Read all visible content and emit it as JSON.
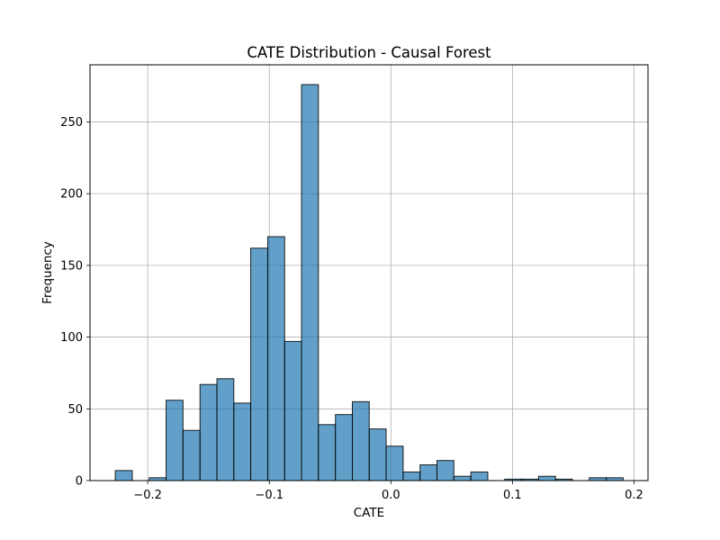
{
  "chart_data": {
    "type": "bar",
    "subtype": "histogram",
    "title": "CATE Distribution - Causal Forest",
    "xlabel": "CATE",
    "ylabel": "Frequency",
    "xlim": [
      -0.2475,
      0.2115
    ],
    "ylim": [
      0,
      289.8
    ],
    "x_ticks": [
      -0.2,
      -0.1,
      0.0,
      0.1,
      0.2
    ],
    "x_tick_labels": [
      "−0.2",
      "−0.1",
      "0.0",
      "0.1",
      "0.2"
    ],
    "y_ticks": [
      0,
      50,
      100,
      150,
      200,
      250
    ],
    "y_tick_labels": [
      "0",
      "50",
      "100",
      "150",
      "200",
      "250"
    ],
    "grid": true,
    "bar_color": "#1f77b4",
    "bar_opacity": 0.7,
    "edge_color": "#000000",
    "bins": [
      {
        "x0": -0.2267,
        "x1": -0.2127,
        "count": 7
      },
      {
        "x0": -0.2127,
        "x1": -0.1988,
        "count": 0
      },
      {
        "x0": -0.1988,
        "x1": -0.1849,
        "count": 2
      },
      {
        "x0": -0.1849,
        "x1": -0.171,
        "count": 56
      },
      {
        "x0": -0.171,
        "x1": -0.157,
        "count": 35
      },
      {
        "x0": -0.157,
        "x1": -0.1431,
        "count": 67
      },
      {
        "x0": -0.1431,
        "x1": -0.1292,
        "count": 71
      },
      {
        "x0": -0.1292,
        "x1": -0.1153,
        "count": 54
      },
      {
        "x0": -0.1153,
        "x1": -0.1013,
        "count": 162
      },
      {
        "x0": -0.1013,
        "x1": -0.0874,
        "count": 170
      },
      {
        "x0": -0.0874,
        "x1": -0.0735,
        "count": 97
      },
      {
        "x0": -0.0735,
        "x1": -0.0596,
        "count": 276
      },
      {
        "x0": -0.0596,
        "x1": -0.0456,
        "count": 39
      },
      {
        "x0": -0.0456,
        "x1": -0.0317,
        "count": 46
      },
      {
        "x0": -0.0317,
        "x1": -0.0178,
        "count": 55
      },
      {
        "x0": -0.0178,
        "x1": -0.0039,
        "count": 36
      },
      {
        "x0": -0.0039,
        "x1": 0.0101,
        "count": 24
      },
      {
        "x0": 0.0101,
        "x1": 0.024,
        "count": 6
      },
      {
        "x0": 0.024,
        "x1": 0.0379,
        "count": 11
      },
      {
        "x0": 0.0379,
        "x1": 0.0518,
        "count": 14
      },
      {
        "x0": 0.0518,
        "x1": 0.0658,
        "count": 3
      },
      {
        "x0": 0.0658,
        "x1": 0.0797,
        "count": 6
      },
      {
        "x0": 0.0797,
        "x1": 0.0936,
        "count": 0
      },
      {
        "x0": 0.0936,
        "x1": 0.1075,
        "count": 1
      },
      {
        "x0": 0.1075,
        "x1": 0.1215,
        "count": 1
      },
      {
        "x0": 0.1215,
        "x1": 0.1354,
        "count": 3
      },
      {
        "x0": 0.1354,
        "x1": 0.1493,
        "count": 1
      },
      {
        "x0": 0.1493,
        "x1": 0.1632,
        "count": 0
      },
      {
        "x0": 0.1632,
        "x1": 0.1772,
        "count": 2
      },
      {
        "x0": 0.1772,
        "x1": 0.1911,
        "count": 2
      }
    ]
  }
}
